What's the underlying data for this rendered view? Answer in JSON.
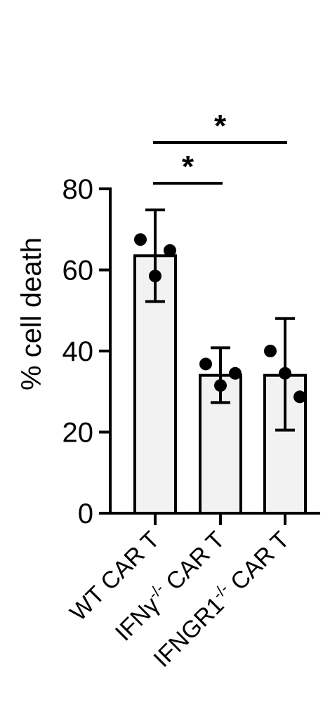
{
  "chart_data": {
    "type": "bar",
    "ylabel": "% cell death",
    "ylim": [
      0,
      80
    ],
    "yticks": [
      0,
      20,
      40,
      60,
      80
    ],
    "categories": [
      {
        "base": "WT CAR T",
        "sup": "",
        "rest": ""
      },
      {
        "base": "IFNγ",
        "sup": "-/-",
        "rest": " CAR T"
      },
      {
        "base": "IFNGR1",
        "sup": "-/-",
        "rest": " CAR T"
      }
    ],
    "means": [
      63.5,
      34,
      34
    ],
    "err_low": [
      52.2,
      27.3,
      20.5
    ],
    "err_high": [
      74.8,
      40.8,
      48
    ],
    "points": [
      [
        67.5,
        58.5,
        64.8
      ],
      [
        36.8,
        31.5,
        34.5
      ],
      [
        40,
        34.5,
        28.7
      ]
    ],
    "significance": [
      {
        "from": 0,
        "to": 1,
        "label": "*"
      },
      {
        "from": 0,
        "to": 2,
        "label": "*"
      }
    ],
    "colors": {
      "bar_fill": "#f3f2f2",
      "stroke": "#000000"
    }
  }
}
